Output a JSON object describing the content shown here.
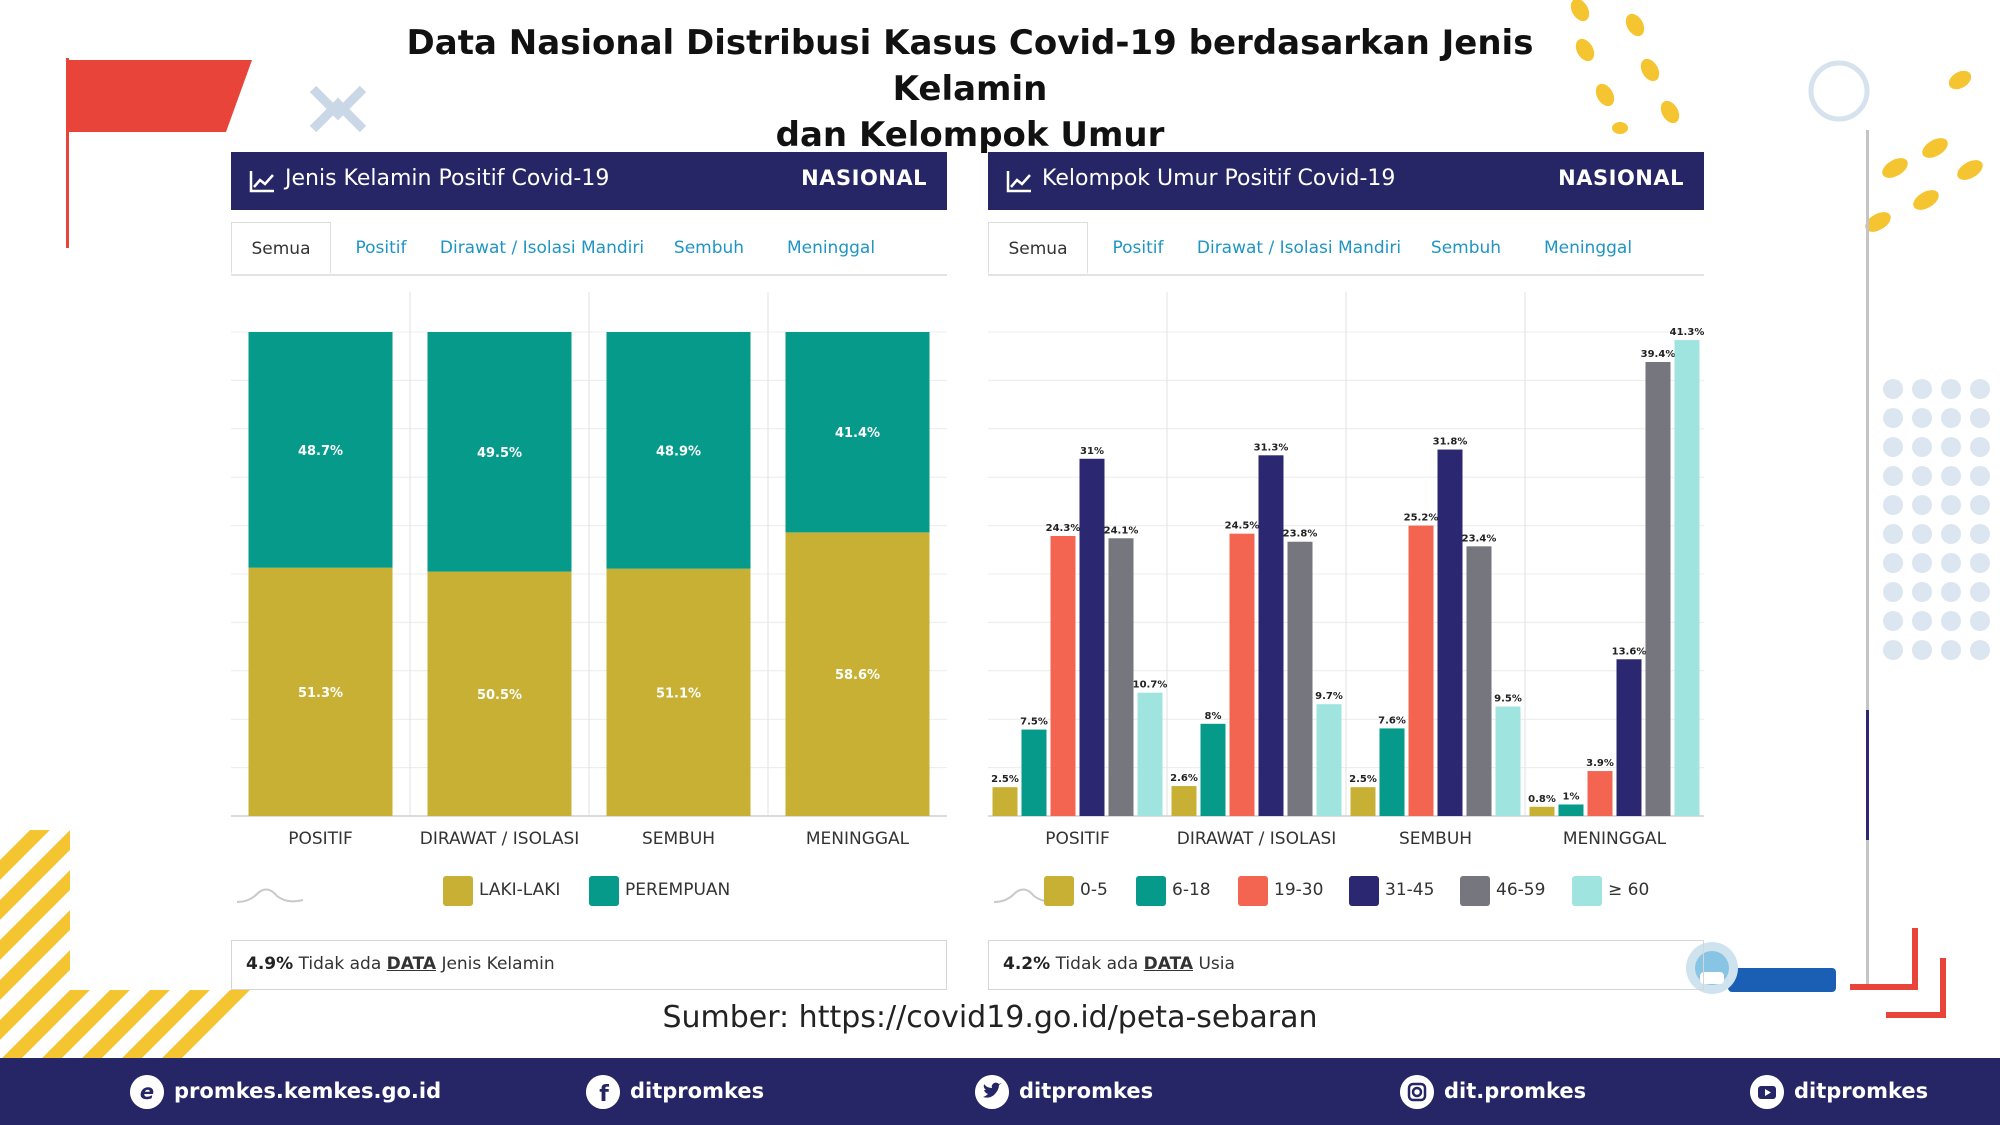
{
  "title_line1": "Data Nasional Distribusi Kasus Covid-19 berdasarkan Jenis Kelamin",
  "title_line2": "dan Kelompok Umur",
  "source": "Sumber: https://covid19.go.id/peta-sebaran",
  "colors": {
    "header": "#262566",
    "laki_laki": "#c8b035",
    "perempuan": "#059a8a",
    "age_0_5": "#c8b035",
    "age_6_18": "#059a8a",
    "age_19_30": "#f36550",
    "age_31_45": "#2b2770",
    "age_46_59": "#76767e",
    "age_60": "#9fe4de",
    "tab_link": "#1f95c4"
  },
  "left_panel": {
    "title": "Jenis Kelamin Positif Covid-19",
    "badge": "NASIONAL",
    "tabs": [
      "Semua",
      "Positif",
      "Dirawat / Isolasi Mandiri",
      "Sembuh",
      "Meninggal"
    ],
    "active_tab": "Semua",
    "legend": [
      "LAKI-LAKI",
      "PEREMPUAN"
    ],
    "note_pct": "4.9%",
    "note_text1": "Tidak ada",
    "note_data": "DATA",
    "note_text2": "Jenis Kelamin"
  },
  "right_panel": {
    "title": "Kelompok Umur Positif Covid-19",
    "badge": "NASIONAL",
    "tabs": [
      "Semua",
      "Positif",
      "Dirawat / Isolasi Mandiri",
      "Sembuh",
      "Meninggal"
    ],
    "active_tab": "Semua",
    "legend": [
      "0-5",
      "6-18",
      "19-30",
      "31-45",
      "46-59",
      "≥ 60"
    ],
    "note_pct": "4.2%",
    "note_text1": "Tidak ada",
    "note_data": "DATA",
    "note_text2": "Usia"
  },
  "footer": [
    {
      "icon": "web-e-icon",
      "label": "promkes.kemkes.go.id"
    },
    {
      "icon": "facebook-icon",
      "label": "ditpromkes"
    },
    {
      "icon": "twitter-icon",
      "label": "ditpromkes"
    },
    {
      "icon": "instagram-icon",
      "label": "dit.promkes"
    },
    {
      "icon": "youtube-icon",
      "label": "ditpromkes"
    }
  ],
  "chart_data": [
    {
      "type": "bar",
      "stacked": true,
      "percent": true,
      "categories": [
        "POSITIF",
        "DIRAWAT / ISOLASI",
        "SEMBUH",
        "MENINGGAL"
      ],
      "series": [
        {
          "name": "LAKI-LAKI",
          "values": [
            51.3,
            50.5,
            51.1,
            58.6
          ],
          "labels": [
            "51.3%",
            "50.5%",
            "51.1%",
            "58.6%"
          ]
        },
        {
          "name": "PEREMPUAN",
          "values": [
            48.7,
            49.5,
            48.9,
            41.4
          ],
          "labels": [
            "48.7%",
            "49.5%",
            "48.9%",
            "41.4%"
          ]
        }
      ],
      "ylim": [
        0,
        100
      ],
      "grid": true,
      "legend_position": "bottom"
    },
    {
      "type": "bar",
      "stacked": false,
      "categories": [
        "POSITIF",
        "DIRAWAT / ISOLASI",
        "SEMBUH",
        "MENINGGAL"
      ],
      "series": [
        {
          "name": "0-5",
          "values": [
            2.5,
            2.6,
            2.5,
            0.8
          ],
          "labels": [
            "2.5%",
            "2.6%",
            "2.5%",
            "0.8%"
          ]
        },
        {
          "name": "6-18",
          "values": [
            7.5,
            8,
            7.6,
            1
          ],
          "labels": [
            "7.5%",
            "8%",
            "7.6%",
            "1%"
          ]
        },
        {
          "name": "19-30",
          "values": [
            24.3,
            24.5,
            25.2,
            3.9
          ],
          "labels": [
            "24.3%",
            "24.5%",
            "25.2%",
            "3.9%"
          ]
        },
        {
          "name": "31-45",
          "values": [
            31,
            31.3,
            31.8,
            13.6
          ],
          "labels": [
            "31%",
            "31.3%",
            "31.8%",
            "13.6%"
          ]
        },
        {
          "name": "46-59",
          "values": [
            24.1,
            23.8,
            23.4,
            39.4
          ],
          "labels": [
            "24.1%",
            "23.8%",
            "23.4%",
            "39.4%"
          ]
        },
        {
          "name": "≥ 60",
          "values": [
            10.7,
            9.7,
            9.5,
            41.3
          ],
          "labels": [
            "10.7%",
            "9.7%",
            "9.5%",
            "41.3%"
          ]
        }
      ],
      "ylim": [
        0,
        42
      ],
      "grid": true,
      "legend_position": "bottom"
    }
  ]
}
